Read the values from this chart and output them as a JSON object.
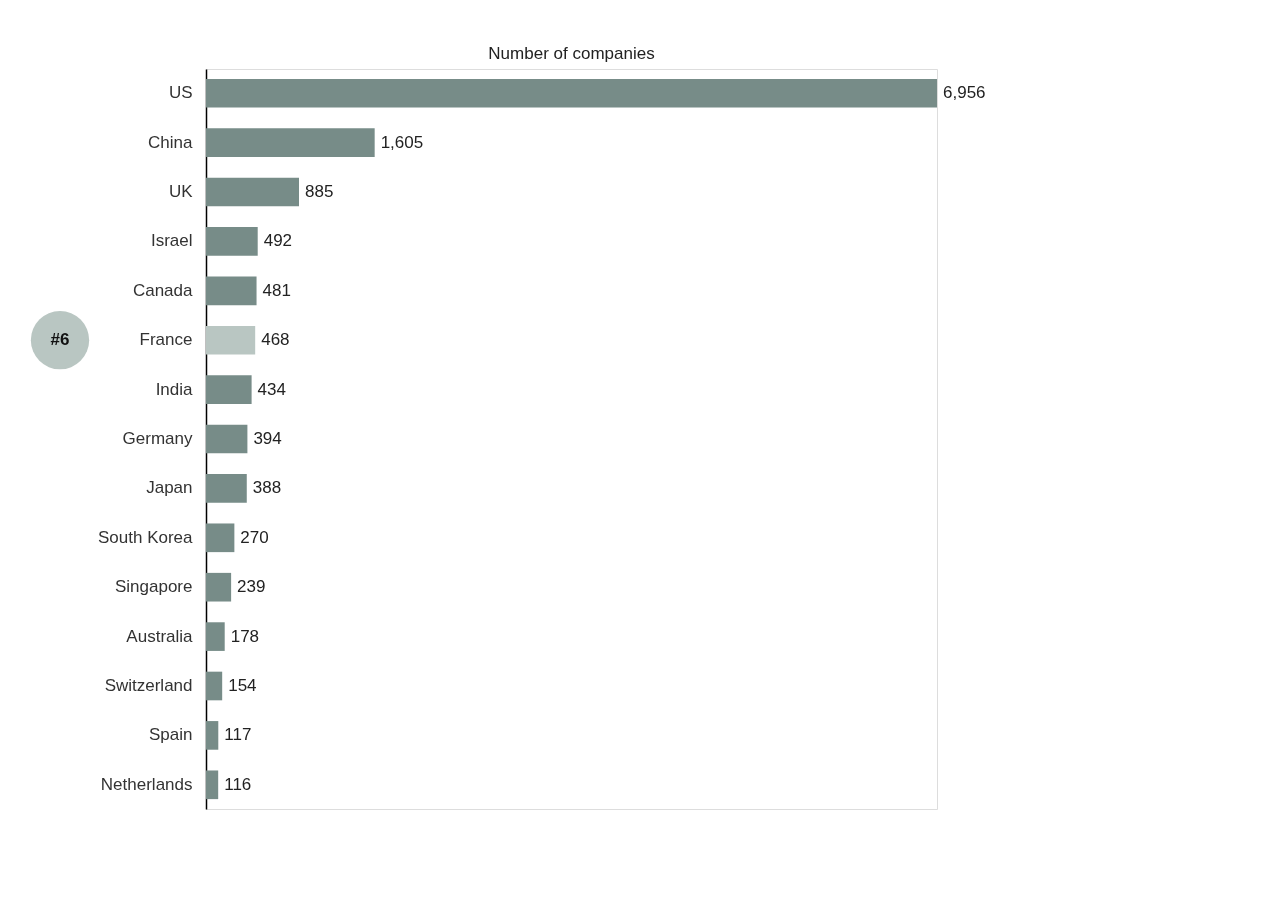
{
  "chart_data": {
    "type": "bar",
    "orientation": "horizontal",
    "title": "Number of companies",
    "categories": [
      "US",
      "China",
      "UK",
      "Israel",
      "Canada",
      "France",
      "India",
      "Germany",
      "Japan",
      "South Korea",
      "Singapore",
      "Australia",
      "Switzerland",
      "Spain",
      "Netherlands"
    ],
    "values": [
      6956,
      1605,
      885,
      492,
      481,
      468,
      434,
      394,
      388,
      270,
      239,
      178,
      154,
      117,
      116
    ],
    "colors": [
      "#778c88",
      "#778c88",
      "#778c88",
      "#778c88",
      "#778c88",
      "#b9c6c2",
      "#778c88",
      "#778c88",
      "#778c88",
      "#778c88",
      "#778c88",
      "#778c88",
      "#778c88",
      "#778c88",
      "#778c88"
    ],
    "value_labels": [
      "6,956",
      "1,605",
      "885",
      "492",
      "481",
      "468",
      "434",
      "394",
      "388",
      "270",
      "239",
      "178",
      "154",
      "117",
      "116"
    ],
    "annotations": [
      "#6"
    ],
    "grid": false
  }
}
